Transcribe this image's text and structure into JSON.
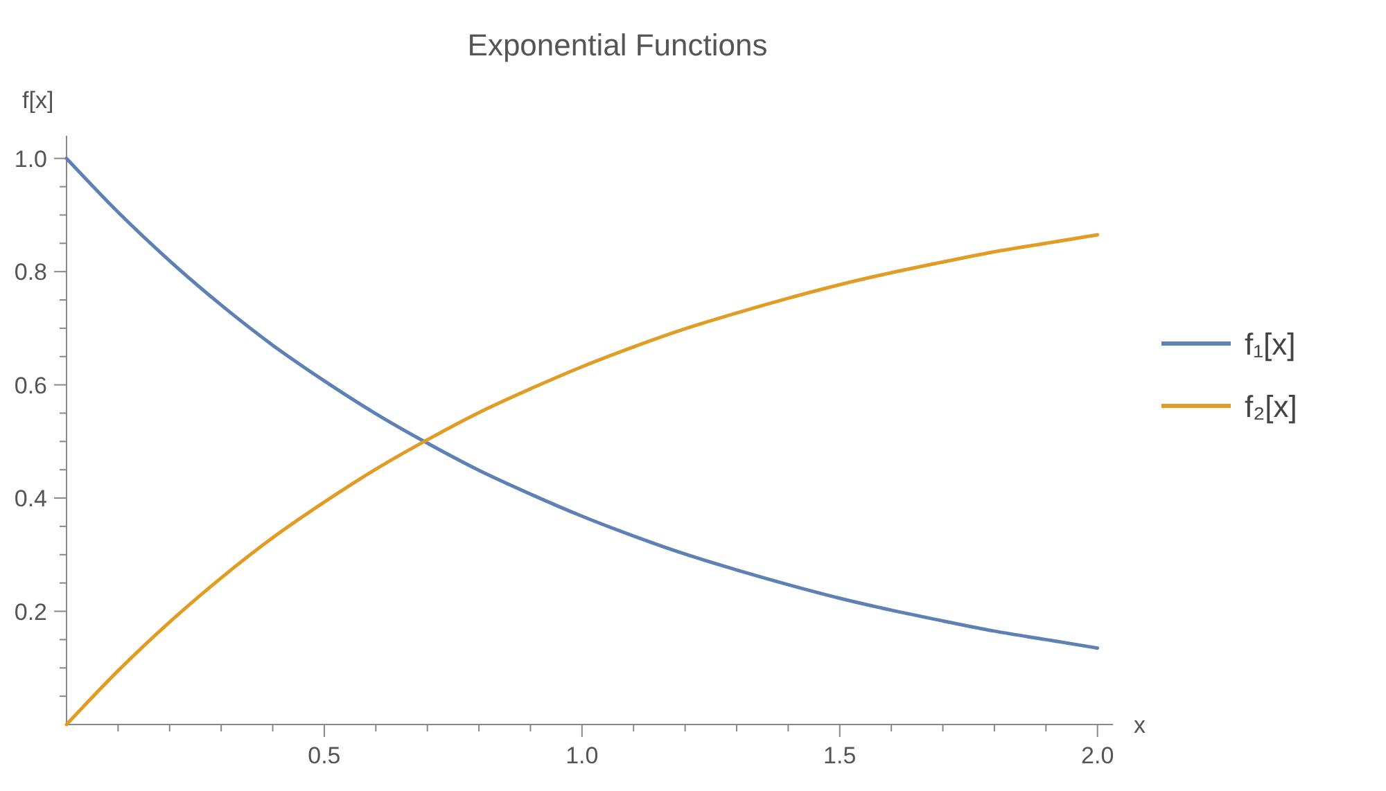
{
  "chart_data": {
    "type": "line",
    "title": "Exponential Functions",
    "xlabel": "x",
    "ylabel": "f[x]",
    "x": [
      0,
      0.1,
      0.2,
      0.3,
      0.4,
      0.5,
      0.6,
      0.7,
      0.8,
      0.9,
      1.0,
      1.1,
      1.2,
      1.3,
      1.4,
      1.5,
      1.6,
      1.7,
      1.8,
      1.9,
      2.0
    ],
    "series": [
      {
        "name": "f₁[x]",
        "color": "#5e81b5",
        "values": [
          1,
          0.905,
          0.819,
          0.741,
          0.67,
          0.607,
          0.549,
          0.497,
          0.449,
          0.407,
          0.368,
          0.333,
          0.301,
          0.273,
          0.247,
          0.223,
          0.202,
          0.183,
          0.165,
          0.15,
          0.135
        ]
      },
      {
        "name": "f₂[x]",
        "color": "#e19c24",
        "values": [
          0,
          0.095,
          0.181,
          0.259,
          0.33,
          0.393,
          0.451,
          0.503,
          0.551,
          0.593,
          0.632,
          0.667,
          0.699,
          0.727,
          0.753,
          0.777,
          0.798,
          0.817,
          0.835,
          0.85,
          0.865
        ]
      }
    ],
    "xlim": [
      0,
      2.03
    ],
    "ylim": [
      0,
      1.04
    ],
    "xticks": [
      {
        "value": 0.1,
        "label": null
      },
      {
        "value": 0.2,
        "label": null
      },
      {
        "value": 0.3,
        "label": null
      },
      {
        "value": 0.4,
        "label": null
      },
      {
        "value": 0.5,
        "label": "0.5"
      },
      {
        "value": 0.6,
        "label": null
      },
      {
        "value": 0.7,
        "label": null
      },
      {
        "value": 0.8,
        "label": null
      },
      {
        "value": 0.9,
        "label": null
      },
      {
        "value": 1.0,
        "label": "1.0"
      },
      {
        "value": 1.1,
        "label": null
      },
      {
        "value": 1.2,
        "label": null
      },
      {
        "value": 1.3,
        "label": null
      },
      {
        "value": 1.4,
        "label": null
      },
      {
        "value": 1.5,
        "label": "1.5"
      },
      {
        "value": 1.6,
        "label": null
      },
      {
        "value": 1.7,
        "label": null
      },
      {
        "value": 1.8,
        "label": null
      },
      {
        "value": 1.9,
        "label": null
      },
      {
        "value": 2.0,
        "label": "2.0"
      }
    ],
    "yticks": [
      {
        "value": 0.05,
        "label": null
      },
      {
        "value": 0.1,
        "label": null
      },
      {
        "value": 0.15,
        "label": null
      },
      {
        "value": 0.2,
        "label": "0.2"
      },
      {
        "value": 0.25,
        "label": null
      },
      {
        "value": 0.3,
        "label": null
      },
      {
        "value": 0.35,
        "label": null
      },
      {
        "value": 0.4,
        "label": "0.4"
      },
      {
        "value": 0.45,
        "label": null
      },
      {
        "value": 0.5,
        "label": null
      },
      {
        "value": 0.55,
        "label": null
      },
      {
        "value": 0.6,
        "label": "0.6"
      },
      {
        "value": 0.65,
        "label": null
      },
      {
        "value": 0.7,
        "label": null
      },
      {
        "value": 0.75,
        "label": null
      },
      {
        "value": 0.8,
        "label": "0.8"
      },
      {
        "value": 0.85,
        "label": null
      },
      {
        "value": 0.9,
        "label": null
      },
      {
        "value": 0.95,
        "label": null
      },
      {
        "value": 1.0,
        "label": "1.0"
      }
    ],
    "legend": "right",
    "grid": false,
    "marker": "none",
    "line_style": "solid"
  }
}
